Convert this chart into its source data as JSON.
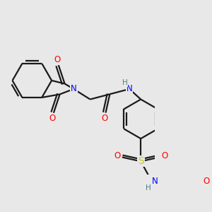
{
  "background_color": "#e8e8e8",
  "bond_color": "#1a1a1a",
  "bond_width": 1.6,
  "font_size": 8.5,
  "colors": {
    "C": "#1a1a1a",
    "N": "#0000ff",
    "O": "#ff0000",
    "S": "#cccc00",
    "H": "#4d8080"
  },
  "bg": "#e8e8e8"
}
